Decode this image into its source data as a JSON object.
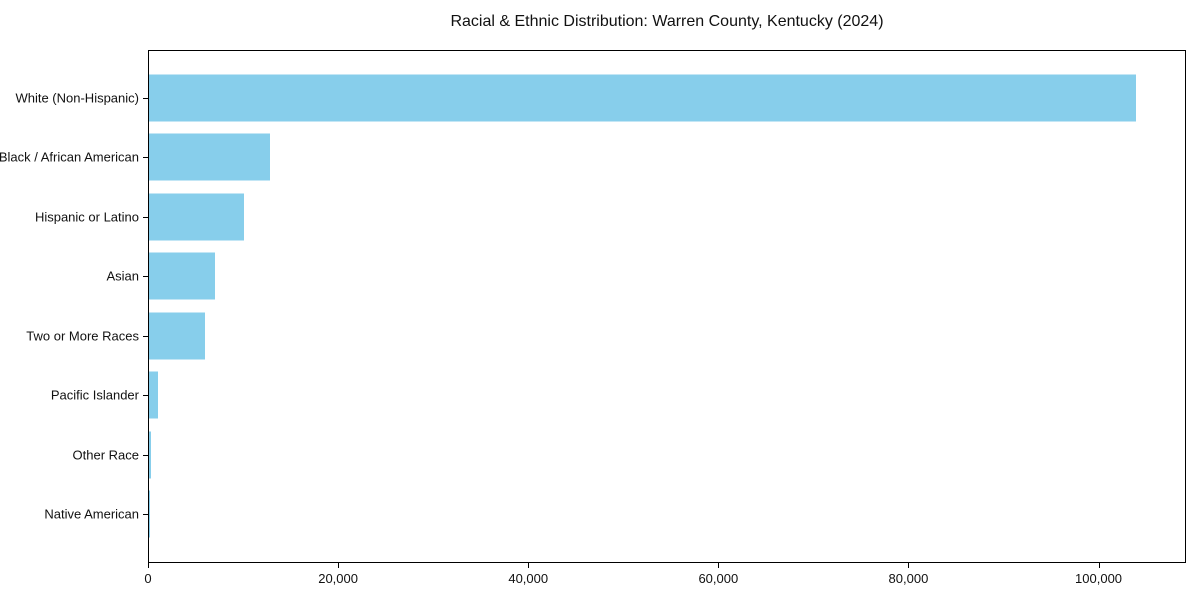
{
  "chart_data": {
    "type": "bar",
    "orientation": "horizontal",
    "title": "Racial & Ethnic Distribution: Warren County, Kentucky (2024)",
    "categories": [
      "White (Non-Hispanic)",
      "Black / African American",
      "Hispanic or Latino",
      "Asian",
      "Two or More Races",
      "Pacific Islander",
      "Other Race",
      "Native American"
    ],
    "values": [
      104000,
      12800,
      10000,
      7000,
      5900,
      1000,
      200,
      100
    ],
    "xlabel": "",
    "ylabel": "",
    "xlim": [
      0,
      109200
    ],
    "x_ticks": [
      0,
      20000,
      40000,
      60000,
      80000,
      100000
    ],
    "x_tick_labels": [
      "0",
      "20,000",
      "40,000",
      "60,000",
      "80,000",
      "100,000"
    ],
    "bar_color": "#87CEEB",
    "frame_color": "#000000",
    "text_color": "#111111",
    "grid": false,
    "legend": "none"
  }
}
